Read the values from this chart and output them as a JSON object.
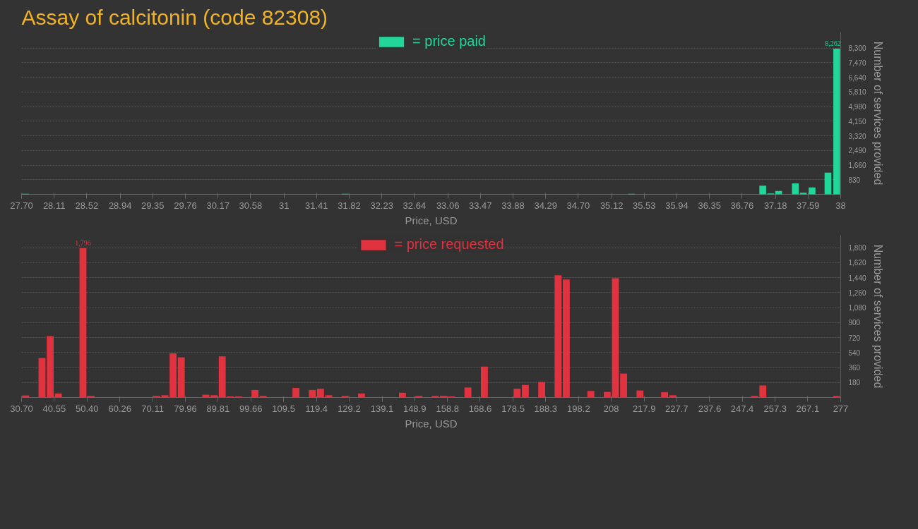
{
  "chart_data": [
    {
      "type": "bar",
      "title": "Assay of calcitonin (code 82308)",
      "xlabel": "Price, USD",
      "ylabel": "Number of services provided",
      "x": [
        27.75,
        31.77,
        35.37,
        37.02,
        37.12,
        37.22,
        37.43,
        37.53,
        37.64,
        37.84,
        37.95
      ],
      "series": [
        {
          "name": "= price paid",
          "color": "#22d69a",
          "values": [
            30,
            30,
            30,
            490,
            50,
            190,
            620,
            90,
            390,
            1230,
            8262
          ],
          "value_labels": [
            null,
            null,
            null,
            null,
            null,
            null,
            null,
            null,
            null,
            null,
            "8,262"
          ]
        }
      ],
      "xlim": [
        27.7,
        38
      ],
      "xticks": [
        {
          "value": 27.7,
          "label": "27.70"
        },
        28.11,
        28.52,
        28.94,
        29.35,
        29.76,
        30.17,
        30.58,
        31,
        31.41,
        31.82,
        32.23,
        32.64,
        33.06,
        33.47,
        33.88,
        34.29,
        {
          "value": 34.7,
          "label": "34.70"
        },
        35.12,
        35.53,
        35.94,
        36.35,
        36.76,
        37.18,
        37.59,
        38
      ],
      "ylim": [
        0,
        9200
      ],
      "yticks": [
        830,
        {
          "value": 1660,
          "label": "1,660"
        },
        {
          "value": 2490,
          "label": "2,490"
        },
        {
          "value": 3320,
          "label": "3,320"
        },
        {
          "value": 4150,
          "label": "4,150"
        },
        {
          "value": 4980,
          "label": "4,980"
        },
        {
          "value": 5810,
          "label": "5,810"
        },
        {
          "value": 6640,
          "label": "6,640"
        },
        {
          "value": 7470,
          "label": "7,470"
        },
        {
          "value": 8300,
          "label": "8,300"
        }
      ],
      "grid": "y",
      "legend": "top"
    },
    {
      "type": "bar",
      "xlabel": "Price, USD",
      "ylabel": "Number of services provided",
      "x": [
        31.93,
        36.86,
        39.32,
        41.78,
        49.17,
        51.64,
        71.34,
        73.8,
        76.27,
        78.73,
        86.12,
        88.58,
        91.05,
        93.51,
        95.97,
        100.9,
        103.36,
        113.21,
        118.14,
        120.6,
        123.06,
        127.99,
        132.91,
        145.23,
        150.16,
        155.08,
        157.55,
        160.01,
        164.93,
        169.86,
        179.71,
        182.17,
        187.1,
        192.03,
        194.49,
        201.88,
        206.8,
        209.27,
        211.73,
        216.66,
        224.05,
        226.51,
        251.14,
        253.6,
        275.77
      ],
      "series": [
        {
          "name": "= price requested",
          "color": "#e0323f",
          "values": [
            24,
            473,
            738,
            48,
            1796,
            18,
            18,
            27,
            530,
            482,
            33,
            27,
            494,
            12,
            12,
            90,
            18,
            114,
            90,
            105,
            27,
            18,
            48,
            57,
            18,
            18,
            18,
            12,
            120,
            371,
            105,
            150,
            186,
            1469,
            1418,
            78,
            66,
            1433,
            287,
            84,
            63,
            27,
            18,
            144,
            18
          ],
          "value_labels": [
            null,
            null,
            null,
            null,
            "1,796",
            null,
            null,
            null,
            null,
            null,
            null,
            null,
            null,
            null,
            null,
            null,
            null,
            null,
            null,
            null,
            null,
            null,
            null,
            null,
            null,
            null,
            null,
            null,
            null,
            null,
            null,
            null,
            null,
            null,
            null,
            null,
            null,
            null,
            null,
            null,
            null,
            null,
            null,
            null,
            null
          ]
        }
      ],
      "xlim": [
        30.7,
        277
      ],
      "xticks": [
        {
          "value": 30.7,
          "label": "30.70"
        },
        40.55,
        {
          "value": 50.4,
          "label": "50.40"
        },
        60.26,
        70.11,
        79.96,
        89.81,
        99.66,
        109.5,
        119.4,
        129.2,
        139.1,
        148.9,
        158.8,
        168.6,
        178.5,
        188.3,
        198.2,
        208,
        217.9,
        227.7,
        237.6,
        247.4,
        257.3,
        267.1,
        277
      ],
      "ylim": [
        0,
        1950
      ],
      "yticks": [
        180,
        360,
        540,
        720,
        900,
        {
          "value": 1080,
          "label": "1,080"
        },
        {
          "value": 1260,
          "label": "1,260"
        },
        {
          "value": 1440,
          "label": "1,440"
        },
        {
          "value": 1620,
          "label": "1,620"
        },
        {
          "value": 1800,
          "label": "1,800"
        }
      ],
      "grid": "y",
      "legend": "top"
    }
  ]
}
